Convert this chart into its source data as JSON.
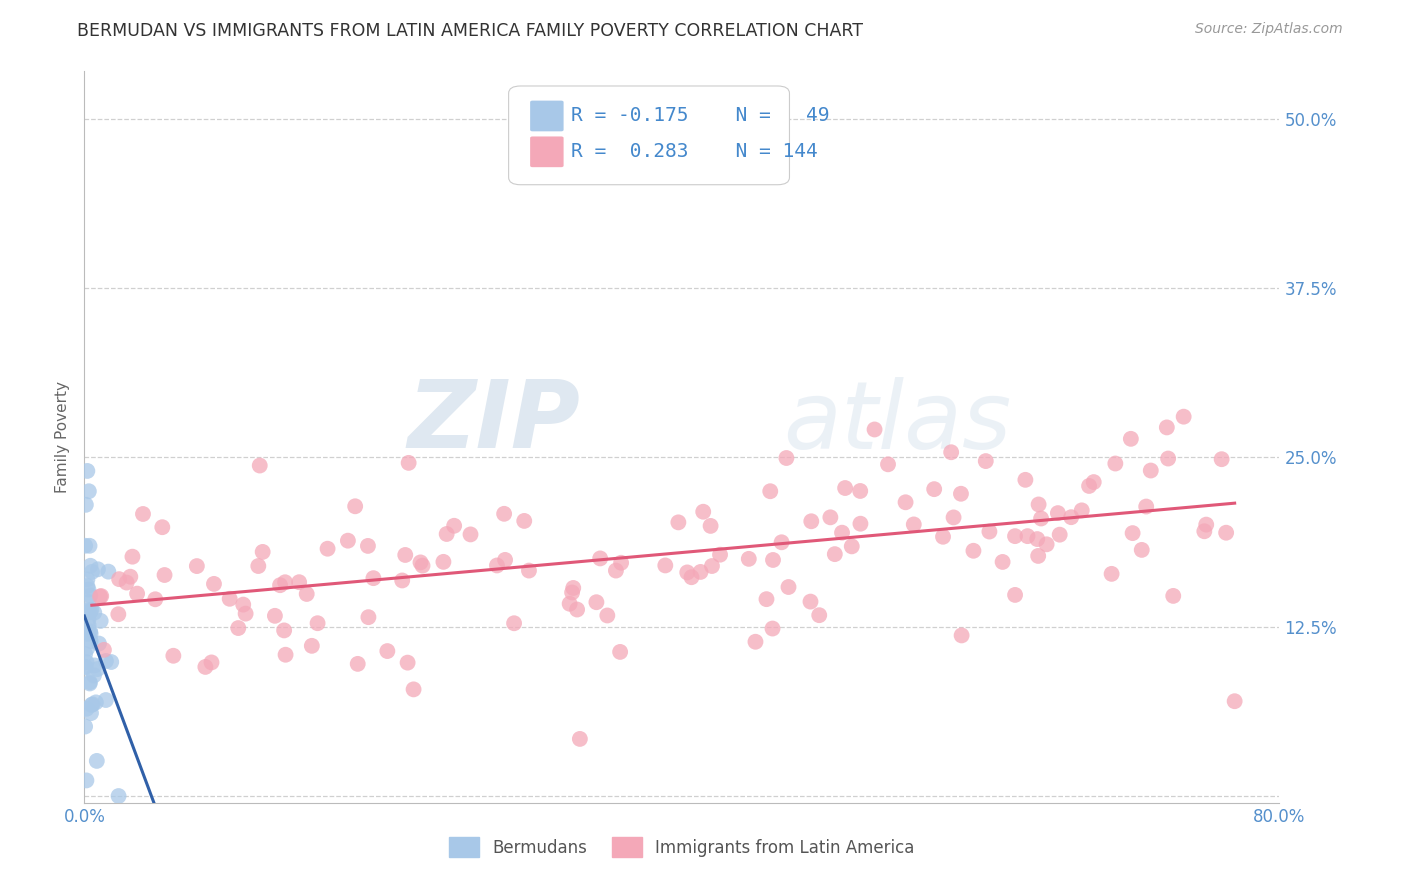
{
  "title": "BERMUDAN VS IMMIGRANTS FROM LATIN AMERICA FAMILY POVERTY CORRELATION CHART",
  "source": "Source: ZipAtlas.com",
  "ylabel": "Family Poverty",
  "xlim": [
    0,
    0.8
  ],
  "ylim": [
    -0.005,
    0.535
  ],
  "ytick_vals": [
    0.0,
    0.125,
    0.25,
    0.375,
    0.5
  ],
  "ytick_labels": [
    "",
    "12.5%",
    "25.0%",
    "37.5%",
    "50.0%"
  ],
  "xtick_vals": [
    0.0,
    0.1,
    0.2,
    0.3,
    0.4,
    0.5,
    0.6,
    0.7,
    0.8
  ],
  "xtick_labels": [
    "0.0%",
    "",
    "",
    "",
    "",
    "",
    "",
    "",
    "80.0%"
  ],
  "bermuda_R": -0.175,
  "bermuda_N": 49,
  "latin_R": 0.283,
  "latin_N": 144,
  "bermuda_color": "#a8c8e8",
  "latin_color": "#f4a8b8",
  "bermuda_line_color": "#3060a8",
  "latin_line_color": "#e05878",
  "watermark_zip": "ZIP",
  "watermark_atlas": "atlas",
  "legend_label_bermuda": "Bermudans",
  "legend_label_latin": "Immigrants from Latin America",
  "background_color": "#ffffff",
  "grid_color": "#d0d0d0",
  "title_color": "#333333",
  "axis_tick_color": "#5590cc",
  "stat_text_color": "#4488cc",
  "title_fontsize": 12.5,
  "source_fontsize": 10,
  "stat_fontsize": 14,
  "axis_label_fontsize": 11,
  "tick_fontsize": 12
}
